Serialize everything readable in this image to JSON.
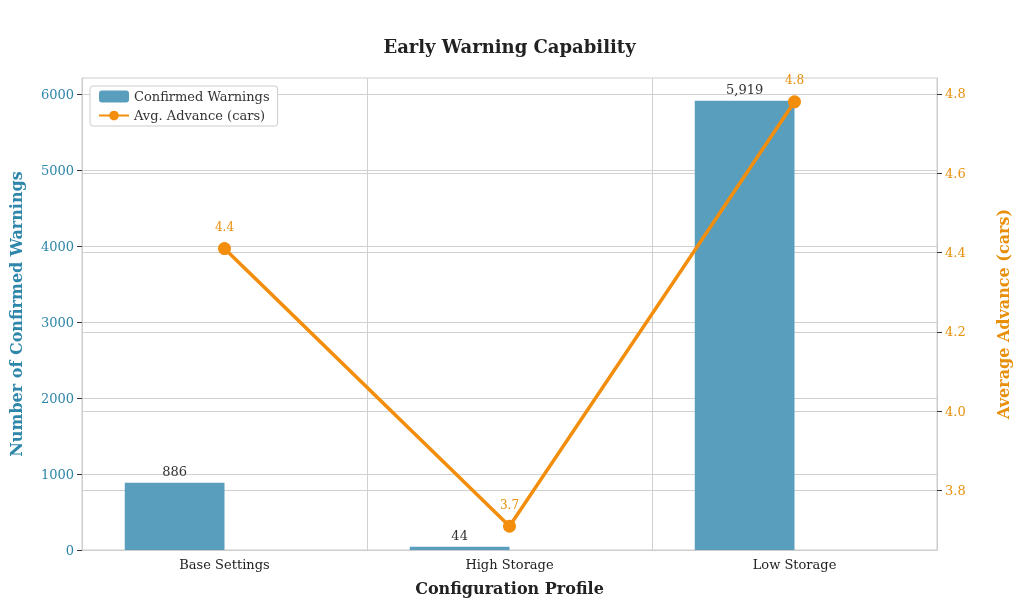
{
  "chart_data": {
    "type": "bar",
    "title": "Early Warning Capability",
    "xlabel": "Configuration Profile",
    "ylabel": "Number of Confirmed Warnings",
    "y2label": "Average Advance (cars)",
    "categories": [
      "Base Settings",
      "High Storage",
      "Low Storage"
    ],
    "series": [
      {
        "name": "Confirmed Warnings",
        "color": "#5a9ebe",
        "values": [
          886,
          44,
          5919
        ],
        "value_labels": [
          "886",
          "44",
          "5,919"
        ]
      },
      {
        "name": "Avg. Advance (cars)",
        "type": "line",
        "axis": "y2",
        "color": "#f28e0c",
        "marker": "circle",
        "values": [
          4.41,
          3.71,
          4.78
        ],
        "value_labels": [
          "4.4",
          "3.7",
          "4.8"
        ]
      }
    ],
    "ylim": [
      0,
      6220
    ],
    "yticks": [
      0,
      1000,
      2000,
      3000,
      4000,
      5000,
      6000
    ],
    "y2lim": [
      3.65,
      4.84
    ],
    "y2ticks": [
      3.8,
      {
        "value": 4,
        "label": "4.0"
      },
      4.2,
      4.4,
      4.6,
      4.8
    ],
    "grid": true,
    "legend": "top left"
  }
}
